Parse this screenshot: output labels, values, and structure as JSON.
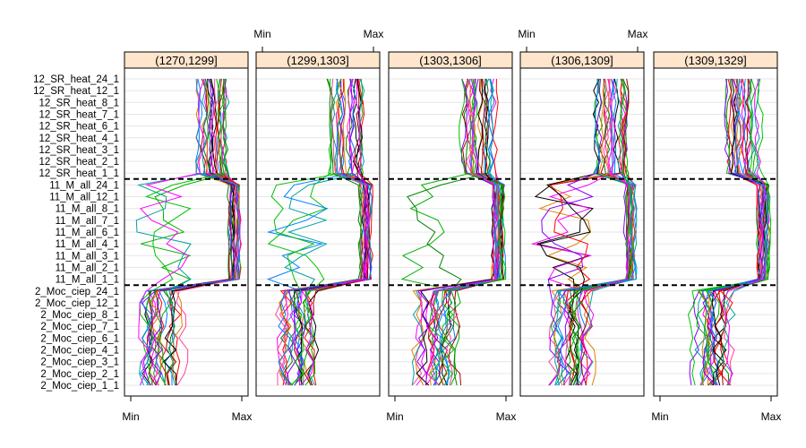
{
  "chart_data": {
    "type": "line",
    "subtype": "lattice-parallel-coordinates",
    "panel_strip_fill": "#ffe5cc",
    "panels": [
      "(1270,1299]",
      "(1299,1303]",
      "(1303,1306]",
      "(1306,1309]",
      "(1309,1329]"
    ],
    "axis": {
      "min_label": "Min",
      "max_label": "Max",
      "tick_position": "alternating top/bottom"
    },
    "variables": [
      "2_Moc_ciep_1_1",
      "2_Moc_ciep_2_1",
      "2_Moc_ciep_3_1",
      "2_Moc_ciep_4_1",
      "2_Moc_ciep_6_1",
      "2_Moc_ciep_7_1",
      "2_Moc_ciep_8_1",
      "2_Moc_ciep_12_1",
      "2_Moc_ciep_24_1",
      "11_M_all_1_1",
      "11_M_all_2_1",
      "11_M_all_3_1",
      "11_M_all_4_1",
      "11_M_all_6_1",
      "11_M_all_7_1",
      "11_M_all_8_1",
      "11_M_all_12_1",
      "11_M_all_24_1",
      "12_SR_heat_1_1",
      "12_SR_heat_2_1",
      "12_SR_heat_3_1",
      "12_SR_heat_4_1",
      "12_SR_heat_6_1",
      "12_SR_heat_7_1",
      "12_SR_heat_8_1",
      "12_SR_heat_12_1",
      "12_SR_heat_24_1"
    ],
    "group_separators_after": [
      "2_Moc_ciep_24_1",
      "11_M_all_24_1"
    ],
    "series_colors": [
      "#0080ff",
      "#ff00ff",
      "#008000",
      "#ff0000",
      "#00b000",
      "#e08000",
      "#a00000",
      "#000000",
      "#ff40a0",
      "#8000ff",
      "#00a0a0",
      "#00c000"
    ],
    "lines_per_panel": 26,
    "scaled_range": [
      0,
      1
    ],
    "profile_summary": {
      "2_Moc_ciep": "low (~0.05–0.60)",
      "11_M_all": "high (~0.85–0.99), some outlier profiles low",
      "12_SR_heat": "mid-high (~0.55–0.95)"
    }
  }
}
